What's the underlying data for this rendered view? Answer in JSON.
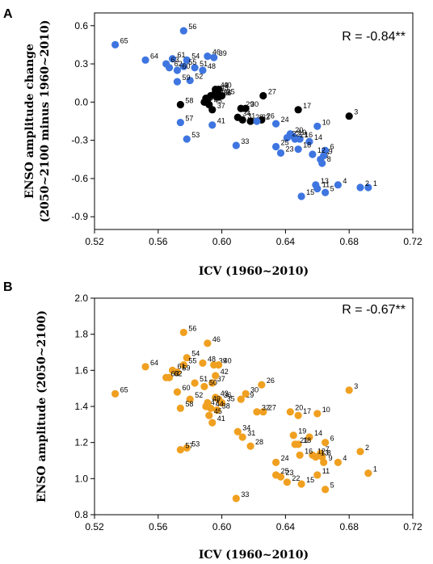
{
  "chart_data": [
    {
      "type": "scatter",
      "panel_label": "A",
      "annotation": "R = -0.84**",
      "xlabel": "ICV (1960~2010)",
      "ylabel": "ENSO amplitude change",
      "ylabel2": "(2050~2100 minus 1960~2010)",
      "xlim": [
        0.52,
        0.72
      ],
      "ylim": [
        -1.0,
        0.7
      ],
      "xticks": [
        0.52,
        0.56,
        0.6,
        0.64,
        0.68,
        0.72
      ],
      "xtick_labels": [
        "0.52",
        "0.56",
        "0.60",
        "0.64",
        "0.68",
        "0.72"
      ],
      "yticks": [
        -0.9,
        -0.6,
        -0.3,
        0.0,
        0.3,
        0.6
      ],
      "ytick_labels": [
        "-0.9",
        "-0.6",
        "-0.3",
        "0.0",
        "0.3",
        "0.6"
      ],
      "colors": {
        "blue": "#3e75e0",
        "black": "#000000"
      },
      "points": [
        {
          "label": "1",
          "x": 0.692,
          "y": -0.67,
          "c": "blue"
        },
        {
          "label": "2",
          "x": 0.687,
          "y": -0.67,
          "c": "blue"
        },
        {
          "label": "3",
          "x": 0.68,
          "y": -0.11,
          "c": "black"
        },
        {
          "label": "4",
          "x": 0.673,
          "y": -0.65,
          "c": "blue"
        },
        {
          "label": "5",
          "x": 0.665,
          "y": -0.71,
          "c": "blue"
        },
        {
          "label": "6",
          "x": 0.665,
          "y": -0.38,
          "c": "blue"
        },
        {
          "label": "7",
          "x": 0.662,
          "y": -0.45,
          "c": "blue"
        },
        {
          "label": "8",
          "x": 0.663,
          "y": -0.48,
          "c": "blue"
        },
        {
          "label": "9",
          "x": 0.664,
          "y": -0.42,
          "c": "blue"
        },
        {
          "label": "10",
          "x": 0.66,
          "y": -0.19,
          "c": "blue"
        },
        {
          "label": "11",
          "x": 0.66,
          "y": -0.68,
          "c": "blue"
        },
        {
          "label": "12",
          "x": 0.657,
          "y": -0.41,
          "c": "blue"
        },
        {
          "label": "13",
          "x": 0.659,
          "y": -0.65,
          "c": "blue"
        },
        {
          "label": "14",
          "x": 0.655,
          "y": -0.31,
          "c": "blue"
        },
        {
          "label": "15",
          "x": 0.65,
          "y": -0.74,
          "c": "blue"
        },
        {
          "label": "16",
          "x": 0.649,
          "y": -0.29,
          "c": "blue"
        },
        {
          "label": "17",
          "x": 0.648,
          "y": -0.06,
          "c": "black"
        },
        {
          "label": "18",
          "x": 0.648,
          "y": -0.37,
          "c": "blue"
        },
        {
          "label": "19",
          "x": 0.645,
          "y": -0.27,
          "c": "blue"
        },
        {
          "label": "20",
          "x": 0.643,
          "y": -0.25,
          "c": "blue"
        },
        {
          "label": "21",
          "x": 0.646,
          "y": -0.29,
          "c": "blue"
        },
        {
          "label": "22",
          "x": 0.641,
          "y": -0.28,
          "c": "blue"
        },
        {
          "label": "23",
          "x": 0.637,
          "y": -0.4,
          "c": "blue"
        },
        {
          "label": "24",
          "x": 0.634,
          "y": -0.17,
          "c": "blue"
        },
        {
          "label": "25",
          "x": 0.634,
          "y": -0.35,
          "c": "blue"
        },
        {
          "label": "26",
          "x": 0.625,
          "y": -0.14,
          "c": "black"
        },
        {
          "label": "27",
          "x": 0.626,
          "y": 0.05,
          "c": "black"
        },
        {
          "label": "28",
          "x": 0.618,
          "y": -0.15,
          "c": "black"
        },
        {
          "label": "29",
          "x": 0.612,
          "y": -0.05,
          "c": "black"
        },
        {
          "label": "30",
          "x": 0.615,
          "y": -0.05,
          "c": "black"
        },
        {
          "label": "31",
          "x": 0.613,
          "y": -0.14,
          "c": "black"
        },
        {
          "label": "32",
          "x": 0.622,
          "y": -0.15,
          "c": "blue"
        },
        {
          "label": "33",
          "x": 0.609,
          "y": -0.34,
          "c": "blue"
        },
        {
          "label": "34",
          "x": 0.61,
          "y": -0.12,
          "c": "black"
        },
        {
          "label": "35",
          "x": 0.6,
          "y": 0.05,
          "c": "black"
        },
        {
          "label": "36",
          "x": 0.598,
          "y": 0.04,
          "c": "black"
        },
        {
          "label": "37",
          "x": 0.594,
          "y": -0.06,
          "c": "black"
        },
        {
          "label": "38",
          "x": 0.597,
          "y": 0.04,
          "c": "black"
        },
        {
          "label": "39",
          "x": 0.595,
          "y": 0.35,
          "c": "blue"
        },
        {
          "label": "40",
          "x": 0.598,
          "y": 0.1,
          "c": "black"
        },
        {
          "label": "41",
          "x": 0.594,
          "y": -0.18,
          "c": "blue"
        },
        {
          "label": "42",
          "x": 0.596,
          "y": 0.1,
          "c": "black"
        },
        {
          "label": "43",
          "x": 0.596,
          "y": 0.08,
          "c": "black"
        },
        {
          "label": "44",
          "x": 0.593,
          "y": 0.05,
          "c": "black"
        },
        {
          "label": "45",
          "x": 0.592,
          "y": -0.02,
          "c": "black"
        },
        {
          "label": "46",
          "x": 0.591,
          "y": 0.36,
          "c": "blue"
        },
        {
          "label": "47",
          "x": 0.59,
          "y": 0.03,
          "c": "black"
        },
        {
          "label": "48",
          "x": 0.588,
          "y": 0.25,
          "c": "blue"
        },
        {
          "label": "49",
          "x": 0.591,
          "y": 0.02,
          "c": "black"
        },
        {
          "label": "50",
          "x": 0.589,
          "y": 0.0,
          "c": "black"
        },
        {
          "label": "51",
          "x": 0.583,
          "y": 0.27,
          "c": "blue"
        },
        {
          "label": "52",
          "x": 0.58,
          "y": 0.17,
          "c": "blue"
        },
        {
          "label": "53",
          "x": 0.578,
          "y": -0.29,
          "c": "blue"
        },
        {
          "label": "54",
          "x": 0.578,
          "y": 0.33,
          "c": "blue"
        },
        {
          "label": "55",
          "x": 0.576,
          "y": 0.28,
          "c": "blue"
        },
        {
          "label": "56",
          "x": 0.576,
          "y": 0.56,
          "c": "blue"
        },
        {
          "label": "57",
          "x": 0.574,
          "y": -0.16,
          "c": "blue"
        },
        {
          "label": "58",
          "x": 0.574,
          "y": -0.02,
          "c": "black"
        },
        {
          "label": "59",
          "x": 0.572,
          "y": 0.16,
          "c": "blue"
        },
        {
          "label": "60",
          "x": 0.572,
          "y": 0.25,
          "c": "blue"
        },
        {
          "label": "61",
          "x": 0.569,
          "y": 0.34,
          "c": "blue"
        },
        {
          "label": "62",
          "x": 0.567,
          "y": 0.27,
          "c": "blue"
        },
        {
          "label": "63",
          "x": 0.565,
          "y": 0.3,
          "c": "blue"
        },
        {
          "label": "64",
          "x": 0.552,
          "y": 0.33,
          "c": "blue"
        },
        {
          "label": "65",
          "x": 0.533,
          "y": 0.45,
          "c": "blue"
        }
      ]
    },
    {
      "type": "scatter",
      "panel_label": "B",
      "annotation": "R = -0.67**",
      "xlabel": "ICV (1960~2010)",
      "ylabel": "ENSO amplitude (2050~2100)",
      "xlim": [
        0.52,
        0.72
      ],
      "ylim": [
        0.8,
        2.0
      ],
      "xticks": [
        0.52,
        0.56,
        0.6,
        0.64,
        0.68,
        0.72
      ],
      "xtick_labels": [
        "0.52",
        "0.56",
        "0.60",
        "0.64",
        "0.68",
        "0.72"
      ],
      "yticks": [
        0.8,
        1.0,
        1.2,
        1.4,
        1.6,
        1.8,
        2.0
      ],
      "ytick_labels": [
        "0.8",
        "1.0",
        "1.2",
        "1.4",
        "1.6",
        "1.8",
        "2.0"
      ],
      "colors": {
        "orange": "#f0a020"
      },
      "points": [
        {
          "label": "1",
          "x": 0.692,
          "y": 1.03
        },
        {
          "label": "2",
          "x": 0.687,
          "y": 1.15
        },
        {
          "label": "3",
          "x": 0.68,
          "y": 1.49
        },
        {
          "label": "4",
          "x": 0.673,
          "y": 1.09
        },
        {
          "label": "5",
          "x": 0.665,
          "y": 0.94
        },
        {
          "label": "6",
          "x": 0.665,
          "y": 1.2
        },
        {
          "label": "7",
          "x": 0.662,
          "y": 1.14
        },
        {
          "label": "8",
          "x": 0.663,
          "y": 1.12
        },
        {
          "label": "9",
          "x": 0.664,
          "y": 1.09
        },
        {
          "label": "10",
          "x": 0.66,
          "y": 1.36
        },
        {
          "label": "11",
          "x": 0.66,
          "y": 1.02
        },
        {
          "label": "12",
          "x": 0.657,
          "y": 1.13
        },
        {
          "label": "13",
          "x": 0.659,
          "y": 1.12
        },
        {
          "label": "14",
          "x": 0.655,
          "y": 1.23
        },
        {
          "label": "15",
          "x": 0.65,
          "y": 0.97
        },
        {
          "label": "16",
          "x": 0.649,
          "y": 1.13
        },
        {
          "label": "17",
          "x": 0.648,
          "y": 1.35
        },
        {
          "label": "18",
          "x": 0.648,
          "y": 1.19
        },
        {
          "label": "19",
          "x": 0.645,
          "y": 1.24
        },
        {
          "label": "20",
          "x": 0.643,
          "y": 1.37
        },
        {
          "label": "21",
          "x": 0.646,
          "y": 1.19
        },
        {
          "label": "22",
          "x": 0.641,
          "y": 0.98
        },
        {
          "label": "23",
          "x": 0.637,
          "y": 1.01
        },
        {
          "label": "24",
          "x": 0.634,
          "y": 1.09
        },
        {
          "label": "25",
          "x": 0.634,
          "y": 1.02
        },
        {
          "label": "26",
          "x": 0.625,
          "y": 1.52
        },
        {
          "label": "27",
          "x": 0.626,
          "y": 1.37
        },
        {
          "label": "28",
          "x": 0.618,
          "y": 1.18
        },
        {
          "label": "29",
          "x": 0.612,
          "y": 1.44
        },
        {
          "label": "30",
          "x": 0.615,
          "y": 1.47
        },
        {
          "label": "31",
          "x": 0.613,
          "y": 1.23
        },
        {
          "label": "32",
          "x": 0.622,
          "y": 1.37
        },
        {
          "label": "33",
          "x": 0.609,
          "y": 0.89
        },
        {
          "label": "34",
          "x": 0.61,
          "y": 1.26
        },
        {
          "label": "35",
          "x": 0.6,
          "y": 1.42
        },
        {
          "label": "36",
          "x": 0.598,
          "y": 1.44
        },
        {
          "label": "37",
          "x": 0.594,
          "y": 1.53
        },
        {
          "label": "38",
          "x": 0.597,
          "y": 1.38
        },
        {
          "label": "39",
          "x": 0.595,
          "y": 1.63
        },
        {
          "label": "40",
          "x": 0.598,
          "y": 1.63
        },
        {
          "label": "41",
          "x": 0.594,
          "y": 1.31
        },
        {
          "label": "42",
          "x": 0.596,
          "y": 1.57
        },
        {
          "label": "43",
          "x": 0.596,
          "y": 1.45
        },
        {
          "label": "44",
          "x": 0.593,
          "y": 1.39
        },
        {
          "label": "45",
          "x": 0.592,
          "y": 1.35
        },
        {
          "label": "46",
          "x": 0.591,
          "y": 1.75
        },
        {
          "label": "47",
          "x": 0.59,
          "y": 1.4
        },
        {
          "label": "48",
          "x": 0.588,
          "y": 1.64
        },
        {
          "label": "49",
          "x": 0.591,
          "y": 1.42
        },
        {
          "label": "50",
          "x": 0.589,
          "y": 1.51
        },
        {
          "label": "51",
          "x": 0.583,
          "y": 1.53
        },
        {
          "label": "52",
          "x": 0.58,
          "y": 1.44
        },
        {
          "label": "53",
          "x": 0.578,
          "y": 1.17
        },
        {
          "label": "54",
          "x": 0.578,
          "y": 1.67
        },
        {
          "label": "55",
          "x": 0.576,
          "y": 1.63
        },
        {
          "label": "56",
          "x": 0.576,
          "y": 1.81
        },
        {
          "label": "57",
          "x": 0.574,
          "y": 1.16
        },
        {
          "label": "58",
          "x": 0.574,
          "y": 1.39
        },
        {
          "label": "59",
          "x": 0.572,
          "y": 1.59
        },
        {
          "label": "60",
          "x": 0.572,
          "y": 1.48
        },
        {
          "label": "61",
          "x": 0.569,
          "y": 1.6
        },
        {
          "label": "62",
          "x": 0.567,
          "y": 1.56
        },
        {
          "label": "63",
          "x": 0.565,
          "y": 1.56
        },
        {
          "label": "64",
          "x": 0.552,
          "y": 1.62
        },
        {
          "label": "65",
          "x": 0.533,
          "y": 1.47
        }
      ]
    }
  ]
}
